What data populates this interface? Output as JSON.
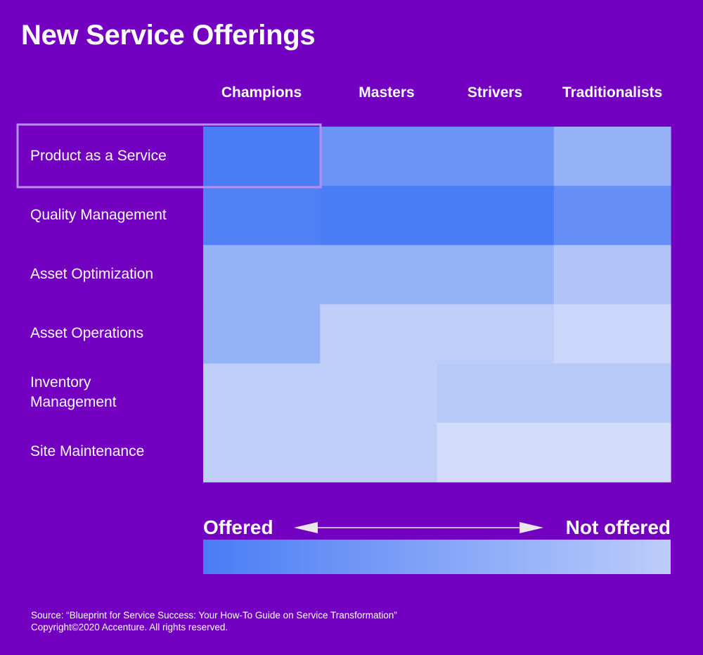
{
  "title": "New Service Offerings",
  "colors": {
    "background": "#7300c0",
    "offered": "#4a7cf5",
    "not_offered": "#d2dcfa",
    "highlight_border": "#b98ef0",
    "arrow": "#e8e8e8"
  },
  "chart_data": {
    "type": "heatmap",
    "title": "New Service Offerings",
    "columns": [
      "Champions",
      "Masters",
      "Strivers",
      "Traditionalists"
    ],
    "rows": [
      "Product as a Service",
      "Quality Management",
      "Asset Optimization",
      "Asset Operations",
      "Inventory Management",
      "Site Maintenance"
    ],
    "values": [
      [
        1.0,
        0.75,
        0.75,
        0.45
      ],
      [
        0.95,
        1.0,
        1.0,
        0.8
      ],
      [
        0.45,
        0.45,
        0.45,
        0.25
      ],
      [
        0.45,
        0.15,
        0.15,
        0.05
      ],
      [
        0.15,
        0.15,
        0.2,
        0.2
      ],
      [
        0.15,
        0.15,
        0.0,
        0.0
      ]
    ],
    "scale": {
      "min": 0,
      "max": 1,
      "low_label": "Not offered",
      "high_label": "Offered"
    },
    "highlighted_row": "Product as a Service"
  },
  "legend": {
    "left_label": "Offered",
    "right_label": "Not offered"
  },
  "source": {
    "line1": "Source: “Blueprint for Service Success: Your How-To Guide on Service Transformation”",
    "line2": "Copyright©2020 Accenture. All rights reserved."
  }
}
